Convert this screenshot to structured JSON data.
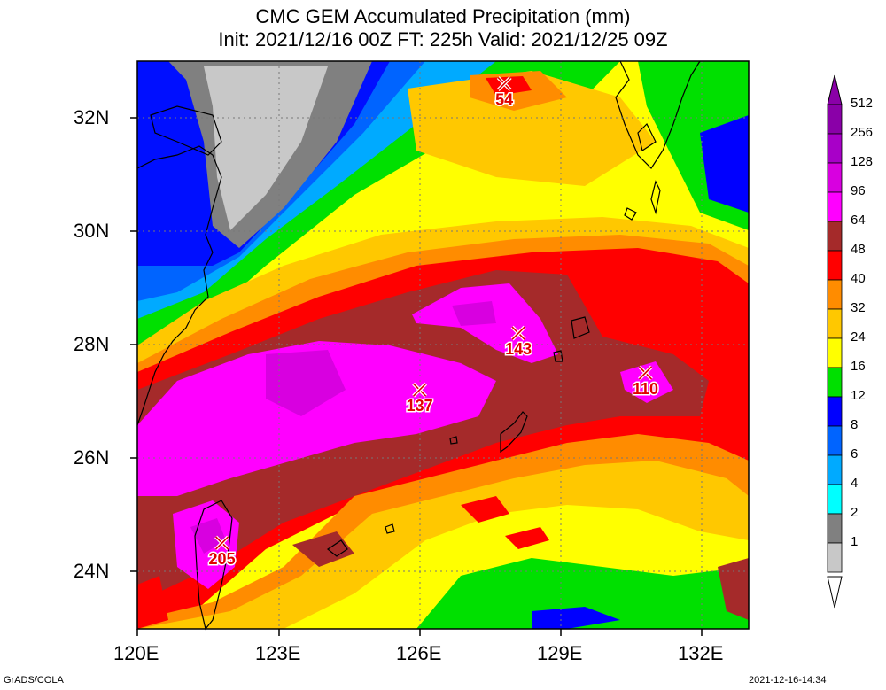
{
  "title": {
    "line1": "CMC GEM Accumulated Precipitation (mm)",
    "line2": "Init: 2021/12/16 00Z  FT: 225h  Valid: 2021/12/25 09Z"
  },
  "axes": {
    "lat_labels": [
      "32N",
      "30N",
      "28N",
      "26N",
      "24N"
    ],
    "lon_labels": [
      "120E",
      "123E",
      "126E",
      "129E",
      "132E"
    ]
  },
  "colorbar": {
    "levels": [
      "512",
      "256",
      "128",
      "96",
      "64",
      "48",
      "40",
      "32",
      "24",
      "16",
      "12",
      "8",
      "6",
      "4",
      "2",
      "1"
    ],
    "colors": [
      "#8a00a8",
      "#a800c8",
      "#d800e0",
      "#ff00ff",
      "#a52a2a",
      "#ff0000",
      "#ff8c00",
      "#ffc800",
      "#ffff00",
      "#00e000",
      "#0000ff",
      "#0064ff",
      "#00aaff",
      "#00ffff",
      "#808080",
      "#c8c8c8"
    ]
  },
  "maxima": [
    {
      "value": "54",
      "lat": 32.6,
      "lon": 127.8
    },
    {
      "value": "143",
      "lat": 28.2,
      "lon": 128.1
    },
    {
      "value": "137",
      "lat": 27.2,
      "lon": 126.0
    },
    {
      "value": "110",
      "lat": 27.5,
      "lon": 130.8
    },
    {
      "value": "205",
      "lat": 24.5,
      "lon": 121.8
    }
  ],
  "footer": {
    "left": "GrADS/COLA",
    "right": "2021-12-16-14:34"
  }
}
